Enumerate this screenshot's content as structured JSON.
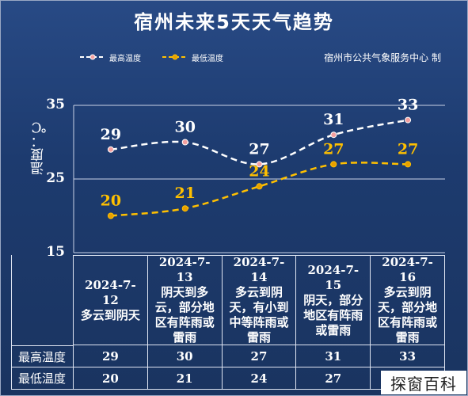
{
  "title": "宿州未来5天天气趋势",
  "source": "宿州市公共气象服务中心  制",
  "watermark": "探窗百科",
  "colors": {
    "high": "#ffffff",
    "low": "#ffc000",
    "high_point": "#f4a0a0",
    "low_point": "#e8a000"
  },
  "chart_data": {
    "type": "line",
    "title": "宿州未来5天天气趋势",
    "ylabel": "温度：℃",
    "ylim": [
      15,
      35
    ],
    "yticks": [
      15,
      25,
      35
    ],
    "grid": true,
    "legend_placement": "top-left",
    "categories": [
      "2024-7-12",
      "2024-7-13",
      "2024-7-14",
      "2024-7-15",
      "2024-7-16"
    ],
    "series": [
      {
        "name": "最高温度",
        "values": [
          29,
          30,
          27,
          31,
          33
        ]
      },
      {
        "name": "最低温度",
        "values": [
          20,
          21,
          24,
          27,
          27
        ]
      }
    ]
  },
  "table": {
    "days": [
      {
        "date": "2024-7-12",
        "weather": "多云到阴天"
      },
      {
        "date": "2024-7-13",
        "weather": "阴天到多云，部分地区有阵雨或雷雨"
      },
      {
        "date": "2024-7-14",
        "weather": "多云到阴天，有小到中等阵雨或雷雨"
      },
      {
        "date": "2024-7-15",
        "weather": "阴天，部分地区有阵雨或雷雨"
      },
      {
        "date": "2024-7-16",
        "weather": "多云到阴天，部分地区有阵雨或雷雨"
      }
    ],
    "high_label": "最高温度",
    "low_label": "最低温度"
  }
}
